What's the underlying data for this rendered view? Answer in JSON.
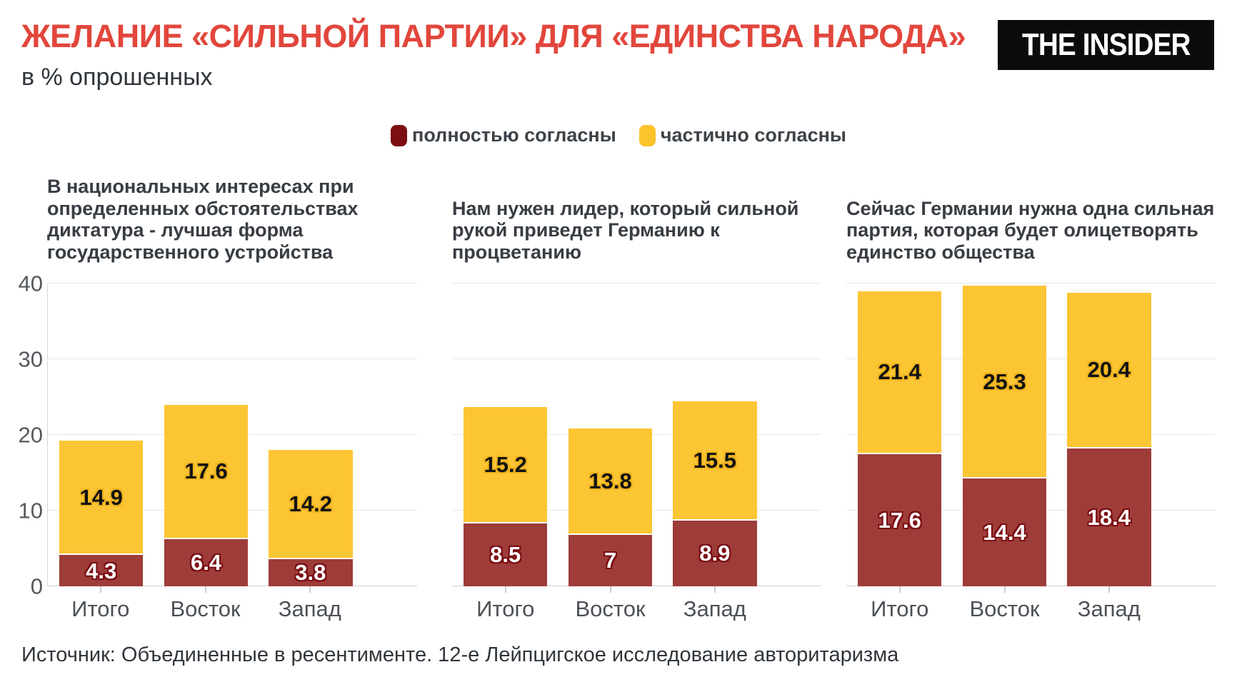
{
  "header": {
    "title": "ЖЕЛАНИЕ «СИЛЬНОЙ ПАРТИИ» ДЛЯ «ЕДИНСТВА НАРОДА»",
    "subtitle": "в % опрошенных",
    "logo": "THE INSIDER",
    "title_color": "#e2463c"
  },
  "legend": {
    "items": [
      {
        "label": "полностью согласны",
        "color": "#7c0f13"
      },
      {
        "label": "частично согласны",
        "color": "#fdc32b"
      }
    ]
  },
  "chart_data": [
    {
      "type": "bar",
      "stacked": true,
      "title": "В национальных интересах при определенных обстоятельствах диктатура - лучшая форма государственного устройства",
      "categories": [
        "Итого",
        "Восток",
        "Запад"
      ],
      "series": [
        {
          "name": "полностью согласны",
          "color": "#9d3c39",
          "values": [
            4.3,
            6.4,
            3.8
          ]
        },
        {
          "name": "частично согласны",
          "color": "#fcc534",
          "values": [
            14.9,
            17.6,
            14.2
          ]
        }
      ],
      "ylim": [
        0,
        40
      ],
      "yticks": [
        0,
        10,
        20,
        30,
        40
      ],
      "grid": true,
      "legend_position": "top-center"
    },
    {
      "type": "bar",
      "stacked": true,
      "title": "Нам нужен лидер, который сильной рукой приведет Германию к процветанию",
      "categories": [
        "Итого",
        "Восток",
        "Запад"
      ],
      "series": [
        {
          "name": "полностью согласны",
          "color": "#9d3c39",
          "values": [
            8.5,
            7,
            8.9
          ]
        },
        {
          "name": "частично согласны",
          "color": "#fcc534",
          "values": [
            15.2,
            13.8,
            15.5
          ]
        }
      ],
      "ylim": [
        0,
        40
      ],
      "yticks": [
        0,
        10,
        20,
        30,
        40
      ],
      "grid": true
    },
    {
      "type": "bar",
      "stacked": true,
      "title": "Сейчас Германии нужна одна сильная партия, которая будет олицетворять единство общества",
      "categories": [
        "Итого",
        "Восток",
        "Запад"
      ],
      "series": [
        {
          "name": "полностью согласны",
          "color": "#9d3c39",
          "values": [
            17.6,
            14.4,
            18.4
          ]
        },
        {
          "name": "частично согласны",
          "color": "#fcc534",
          "values": [
            21.4,
            25.3,
            20.4
          ]
        }
      ],
      "ylim": [
        0,
        40
      ],
      "yticks": [
        0,
        10,
        20,
        30,
        40
      ],
      "grid": true
    }
  ],
  "footer": {
    "source": "Источник: Объединенные в ресентименте. 12-е Лейпцигское исследование авторитаризма"
  }
}
